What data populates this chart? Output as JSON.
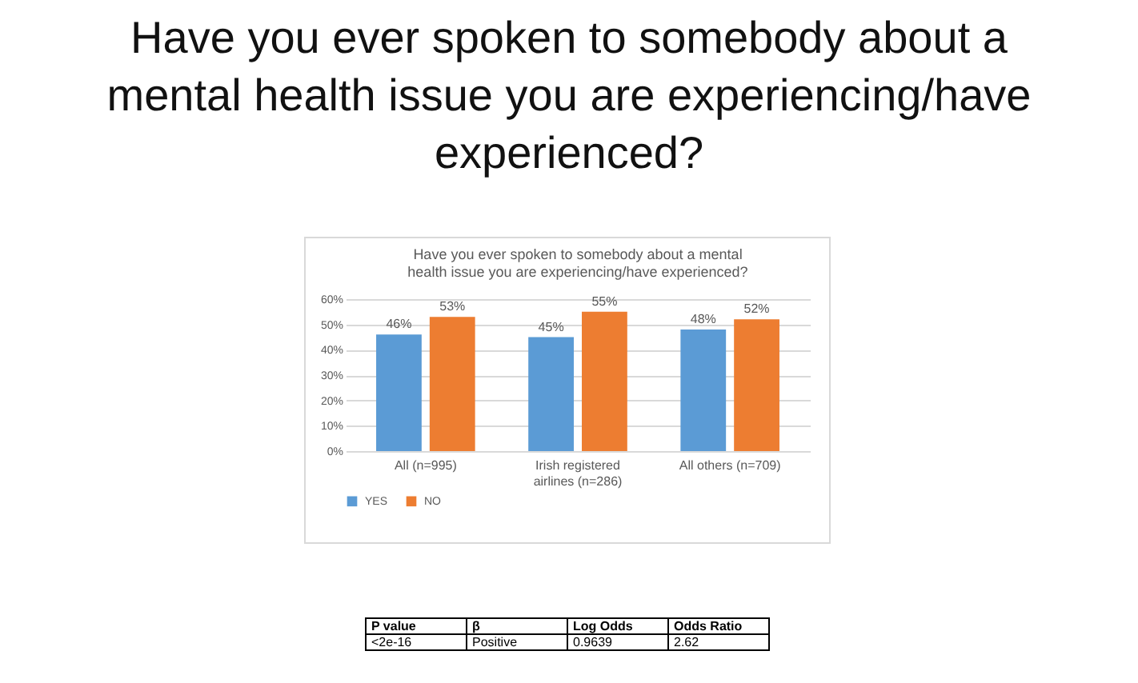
{
  "chart_data": {
    "type": "bar",
    "title": "Have you ever spoken to somebody about a mental health issue you are experiencing/have experienced?",
    "subtitle": "Have you ever spoken to somebody about a mental health issue you are experiencing/have experienced?",
    "categories": [
      "All (n=995)",
      "Irish registered airlines (n=286)",
      "All others (n=709)"
    ],
    "series": [
      {
        "name": "YES",
        "color": "#5b9bd5",
        "values": [
          46,
          45,
          48
        ],
        "value_labels": [
          "46%",
          "45%",
          "48%"
        ]
      },
      {
        "name": "NO",
        "color": "#ed7d31",
        "values": [
          53,
          55,
          52
        ],
        "value_labels": [
          "53%",
          "55%",
          "52%"
        ]
      }
    ],
    "ylim": [
      0,
      60
    ],
    "yticks": [
      {
        "value": 0,
        "label": "0%"
      },
      {
        "value": 10,
        "label": "10%"
      },
      {
        "value": 20,
        "label": "20%"
      },
      {
        "value": 30,
        "label": "30%"
      },
      {
        "value": 40,
        "label": "40%"
      },
      {
        "value": 50,
        "label": "50%"
      },
      {
        "value": 60,
        "label": "60%"
      }
    ],
    "grid": "y",
    "legend": "bottom",
    "annotations": [
      "P value",
      "β",
      "Log Odds",
      "Odds Ratio",
      "<2e-16",
      "Positive",
      "0.9639",
      "2.62"
    ]
  }
}
